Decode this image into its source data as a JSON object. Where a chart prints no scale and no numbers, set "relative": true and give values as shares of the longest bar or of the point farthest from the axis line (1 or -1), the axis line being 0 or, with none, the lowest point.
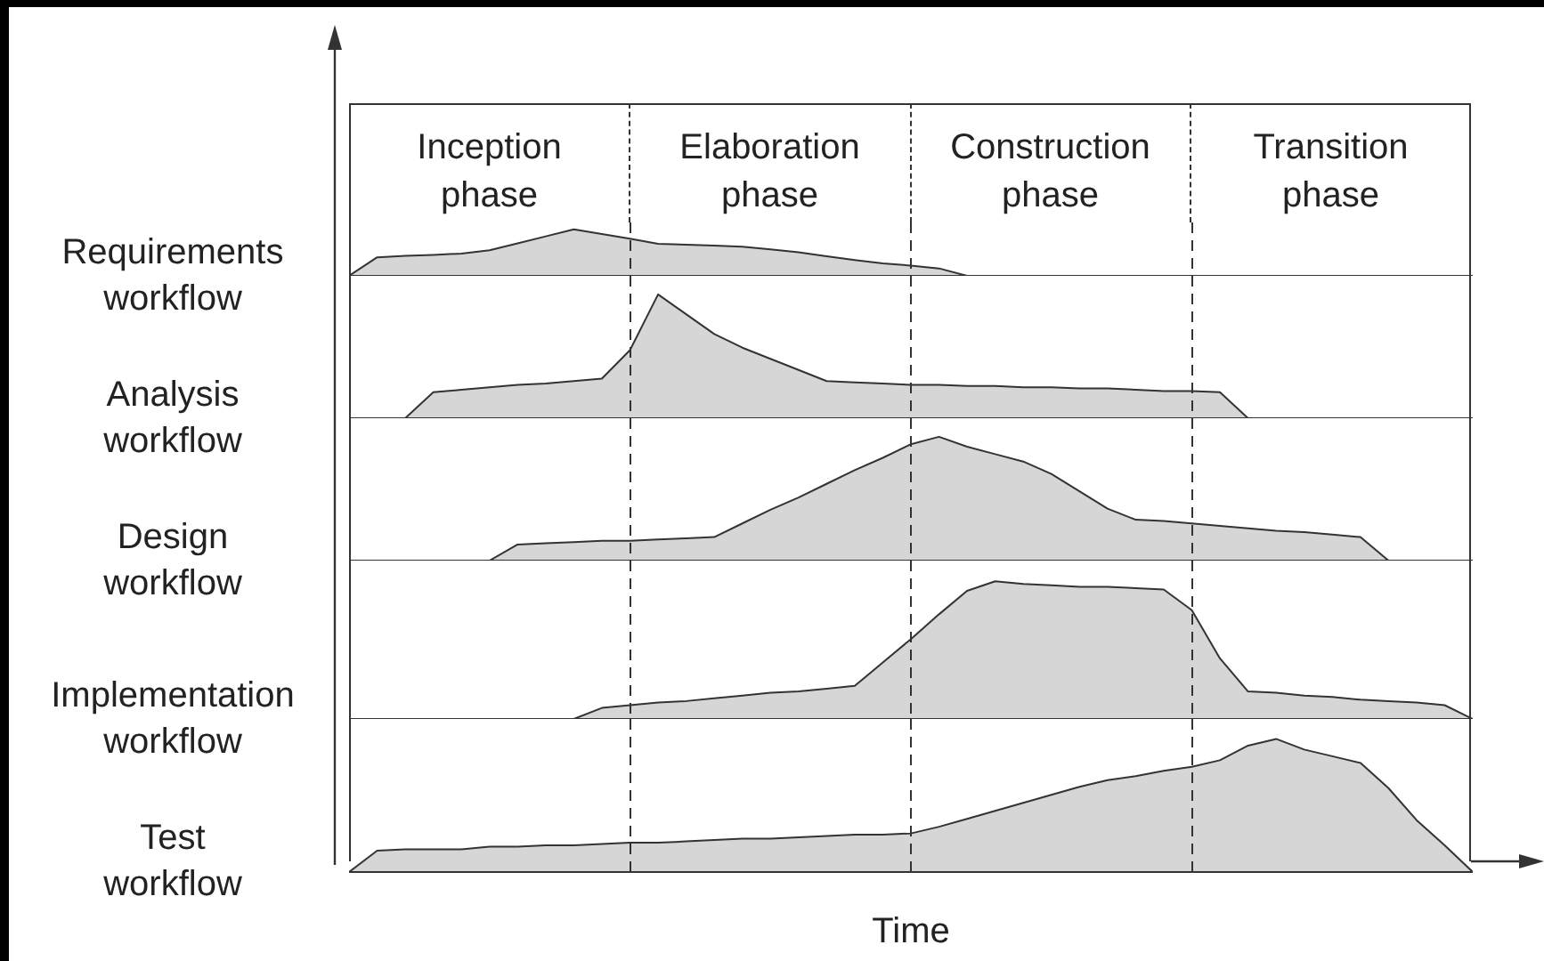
{
  "chart_data": [
    {
      "type": "area",
      "relative": true,
      "grid": "x",
      "ylabel": "Requirements\nworkflow",
      "annotations": [
        "Inception\nphase",
        "Elaboration\nphase",
        "Construction\nphase",
        "Transition\nphase"
      ],
      "categories": [
        null,
        null,
        null,
        null,
        null,
        null,
        null,
        null,
        null,
        null,
        null,
        null,
        null,
        null,
        null,
        null,
        null,
        null,
        null,
        null,
        null,
        null,
        null,
        null,
        null,
        null,
        null,
        null,
        null,
        null,
        null,
        null,
        null,
        null,
        null,
        null,
        null,
        null,
        null,
        null,
        null
      ],
      "series": [
        {
          "color": "#333333",
          "values": [
            0,
            0.4,
            0.43,
            0.45,
            0.48,
            0.55,
            0.7,
            0.85,
            1,
            0.9,
            0.8,
            0.69,
            0.67,
            0.65,
            0.63,
            0.57,
            0.51,
            0.42,
            0.34,
            0.27,
            0.22,
            0.16,
            0,
            null,
            null,
            null,
            null,
            null,
            null,
            null,
            null,
            null,
            null,
            null,
            null,
            null,
            null,
            null,
            null,
            null,
            null
          ]
        }
      ]
    },
    {
      "type": "area",
      "relative": true,
      "grid": "x",
      "ylabel": "Analysis\nworkflow",
      "categories": [
        null,
        null,
        null,
        null,
        null,
        null,
        null,
        null,
        null,
        null,
        null,
        null,
        null,
        null,
        null,
        null,
        null,
        null,
        null,
        null,
        null,
        null,
        null,
        null,
        null,
        null,
        null,
        null,
        null,
        null,
        null,
        null,
        null,
        null,
        null,
        null,
        null,
        null,
        null,
        null,
        null
      ],
      "series": [
        {
          "color": "#333333",
          "values": [
            null,
            null,
            0,
            0.21,
            0.23,
            0.25,
            0.27,
            0.28,
            0.3,
            0.32,
            0.55,
            1,
            0.84,
            0.68,
            0.57,
            0.48,
            0.39,
            0.3,
            0.29,
            0.28,
            0.27,
            0.27,
            0.26,
            0.26,
            0.25,
            0.25,
            0.24,
            0.24,
            0.23,
            0.22,
            0.22,
            0.21,
            0,
            null,
            null,
            null,
            null,
            null,
            null,
            null,
            null
          ]
        }
      ]
    },
    {
      "type": "area",
      "relative": true,
      "grid": "x",
      "ylabel": "Design\nworkflow",
      "categories": [
        null,
        null,
        null,
        null,
        null,
        null,
        null,
        null,
        null,
        null,
        null,
        null,
        null,
        null,
        null,
        null,
        null,
        null,
        null,
        null,
        null,
        null,
        null,
        null,
        null,
        null,
        null,
        null,
        null,
        null,
        null,
        null,
        null,
        null,
        null,
        null,
        null,
        null,
        null,
        null,
        null
      ],
      "series": [
        {
          "color": "#333333",
          "values": [
            null,
            null,
            null,
            null,
            null,
            0,
            0.13,
            0.14,
            0.15,
            0.16,
            0.16,
            0.17,
            0.18,
            0.19,
            0.3,
            0.41,
            0.51,
            0.62,
            0.73,
            0.83,
            0.94,
            1,
            0.92,
            0.86,
            0.8,
            0.7,
            0.56,
            0.42,
            0.33,
            0.32,
            0.3,
            0.28,
            0.26,
            0.24,
            0.23,
            0.21,
            0.19,
            0,
            null,
            null,
            null
          ]
        }
      ]
    },
    {
      "type": "area",
      "relative": true,
      "grid": "x",
      "ylabel": "Implementation\nworkflow",
      "categories": [
        null,
        null,
        null,
        null,
        null,
        null,
        null,
        null,
        null,
        null,
        null,
        null,
        null,
        null,
        null,
        null,
        null,
        null,
        null,
        null,
        null,
        null,
        null,
        null,
        null,
        null,
        null,
        null,
        null,
        null,
        null,
        null,
        null,
        null,
        null,
        null,
        null,
        null,
        null,
        null,
        null
      ],
      "series": [
        {
          "color": "#333333",
          "values": [
            null,
            null,
            null,
            null,
            null,
            null,
            null,
            null,
            0,
            0.08,
            0.1,
            0.12,
            0.13,
            0.15,
            0.17,
            0.19,
            0.2,
            0.22,
            0.24,
            0.41,
            0.58,
            0.76,
            0.93,
            1,
            0.98,
            0.97,
            0.96,
            0.96,
            0.95,
            0.94,
            0.79,
            0.44,
            0.2,
            0.19,
            0.17,
            0.16,
            0.14,
            0.13,
            0.12,
            0.1,
            0
          ]
        }
      ]
    },
    {
      "type": "area",
      "relative": true,
      "grid": "x",
      "ylabel": "Test\nworkflow",
      "xlabel": "Time",
      "categories": [
        null,
        null,
        null,
        null,
        null,
        null,
        null,
        null,
        null,
        null,
        null,
        null,
        null,
        null,
        null,
        null,
        null,
        null,
        null,
        null,
        null,
        null,
        null,
        null,
        null,
        null,
        null,
        null,
        null,
        null,
        null,
        null,
        null,
        null,
        null,
        null,
        null,
        null,
        null,
        null,
        null
      ],
      "series": [
        {
          "color": "#333333",
          "values": [
            0,
            0.16,
            0.17,
            0.17,
            0.17,
            0.19,
            0.19,
            0.2,
            0.2,
            0.21,
            0.22,
            0.22,
            0.23,
            0.24,
            0.25,
            0.25,
            0.26,
            0.27,
            0.28,
            0.28,
            0.29,
            0.34,
            0.4,
            0.46,
            0.52,
            0.58,
            0.64,
            0.69,
            0.72,
            0.76,
            0.79,
            0.84,
            0.95,
            1,
            0.92,
            0.87,
            0.82,
            0.63,
            0.39,
            0.2,
            0
          ]
        }
      ]
    }
  ]
}
